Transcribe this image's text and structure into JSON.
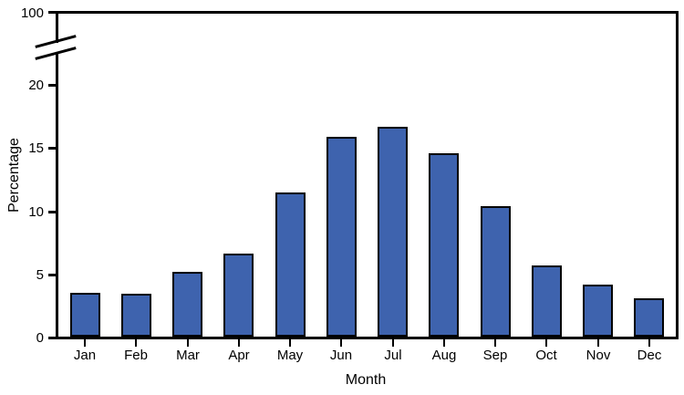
{
  "chart_data": {
    "type": "bar",
    "xlabel": "Month",
    "ylabel": "Percentage",
    "categories": [
      "Jan",
      "Feb",
      "Mar",
      "Apr",
      "May",
      "Jun",
      "Jul",
      "Aug",
      "Sep",
      "Oct",
      "Nov",
      "Dec"
    ],
    "values": [
      3.5,
      3.4,
      5.1,
      6.6,
      11.4,
      15.8,
      16.6,
      14.5,
      10.3,
      5.6,
      4.1,
      3.0
    ],
    "y_axis": {
      "tick_values": [
        0,
        5,
        10,
        15,
        20
      ],
      "tick_labels": [
        "0",
        "5",
        "10",
        "15",
        "20"
      ],
      "broken_axis": true,
      "top_tick_label": "100",
      "top_tick_value": 100,
      "range_shown": [
        0,
        21.5
      ]
    },
    "x_axis": {
      "tick_labels": [
        "Jan",
        "Feb",
        "Mar",
        "Apr",
        "May",
        "Jun",
        "Jul",
        "Aug",
        "Sep",
        "Oct",
        "Nov",
        "Dec"
      ]
    },
    "grid": false,
    "legend": "none",
    "colors": {
      "bar_fill": "#3E63AE",
      "bar_border": "#000000",
      "axis": "#000000",
      "text": "#000000",
      "background": "#FFFFFF"
    }
  }
}
